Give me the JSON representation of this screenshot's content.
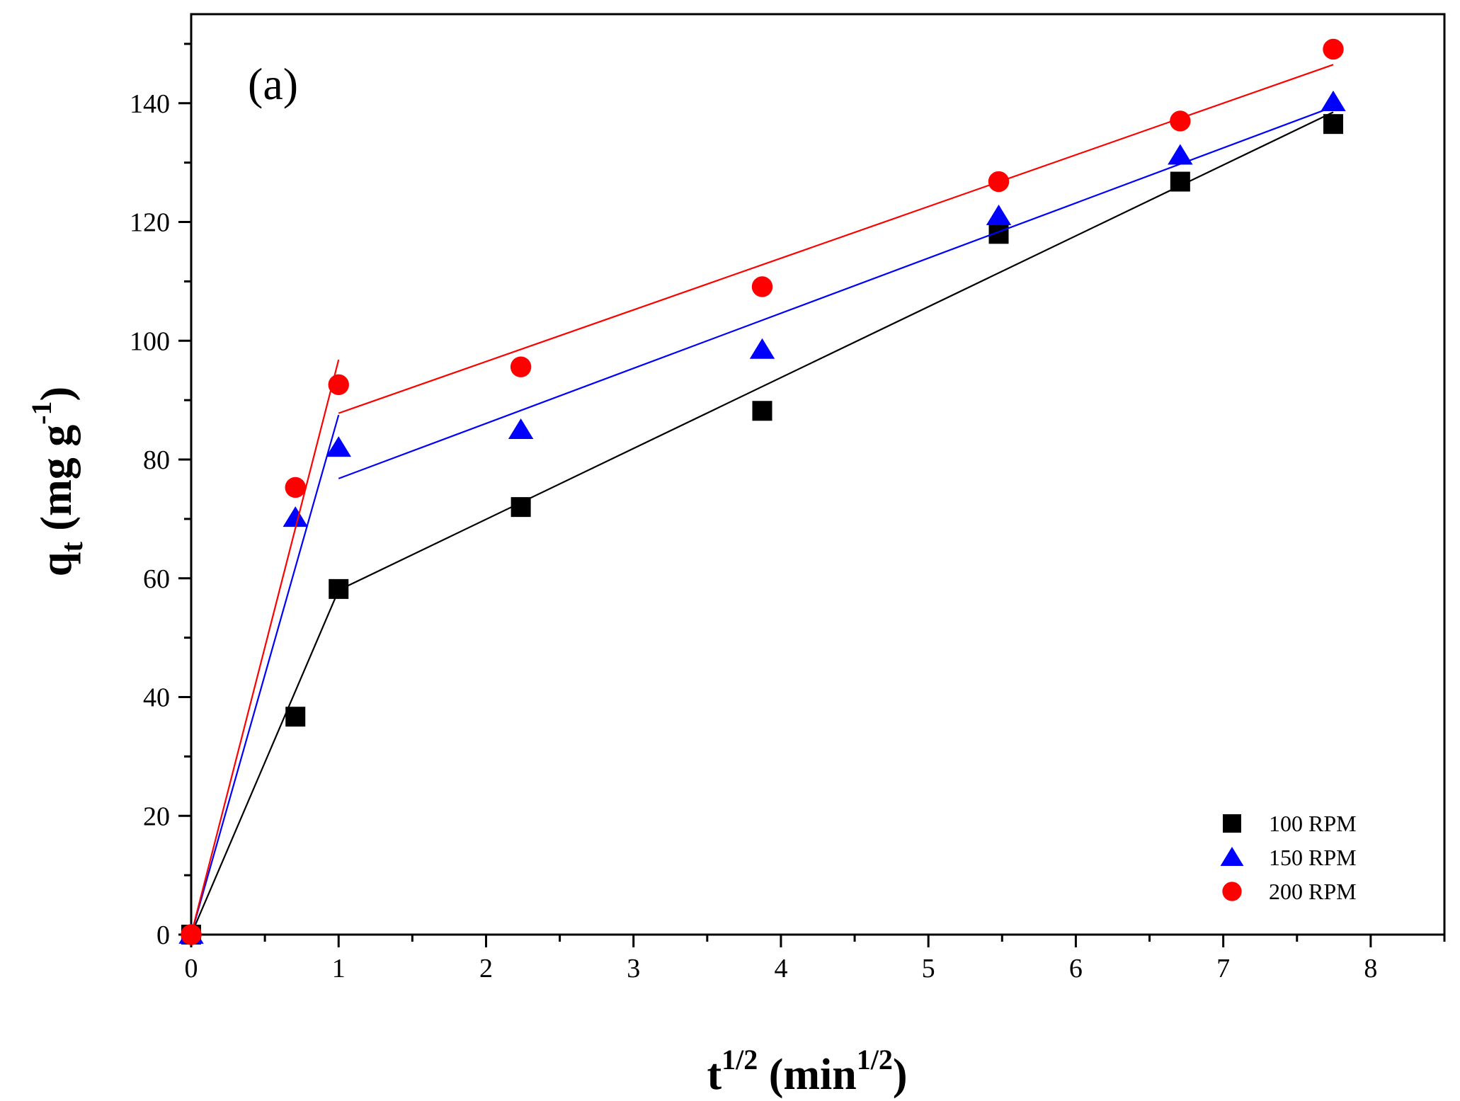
{
  "chart_data": {
    "type": "scatter",
    "panel_label": "(a)",
    "xlabel": {
      "base": "t",
      "sup": "1/2",
      "unit_open": " (min",
      "unit_sup": "1/2",
      "unit_close": ")"
    },
    "ylabel": {
      "base": "q",
      "sub": "t",
      "unit_open": " (mg g",
      "unit_sup": "-1",
      "unit_close": ")"
    },
    "xlim": [
      0,
      8.5
    ],
    "ylim": [
      0,
      155
    ],
    "xticks": [
      0,
      1,
      2,
      3,
      4,
      5,
      6,
      7,
      8
    ],
    "yticks": [
      0,
      20,
      40,
      60,
      80,
      100,
      120,
      140
    ],
    "grid": false,
    "legend_position": "bottom-right",
    "series": [
      {
        "name": "100 RPM",
        "color": "#000000",
        "marker": "square",
        "x": [
          0,
          0.707,
          1.0,
          2.236,
          3.873,
          5.477,
          6.708,
          7.746
        ],
        "y": [
          0,
          36.7,
          58.2,
          72.0,
          88.2,
          118.0,
          126.8,
          136.5
        ],
        "fit_lines": [
          {
            "x": [
              0,
              1.0
            ],
            "y": [
              0,
              58.0
            ]
          },
          {
            "x": [
              1.0,
              7.746
            ],
            "y": [
              58.0,
              138.5
            ]
          }
        ]
      },
      {
        "name": "150 RPM",
        "color": "#0000ff",
        "marker": "triangle",
        "x": [
          0,
          0.707,
          1.0,
          2.236,
          3.873,
          5.477,
          6.708,
          7.746
        ],
        "y": [
          0,
          70.2,
          82.0,
          85.0,
          98.5,
          121.0,
          131.2,
          140.2
        ],
        "fit_lines": [
          {
            "x": [
              0,
              1.0
            ],
            "y": [
              0,
              87.5
            ]
          },
          {
            "x": [
              1.0,
              7.746
            ],
            "y": [
              76.8,
              139.4
            ]
          }
        ]
      },
      {
        "name": "200 RPM",
        "color": "#ff0000",
        "marker": "circle",
        "x": [
          0,
          0.707,
          1.0,
          2.236,
          3.873,
          5.477,
          6.708,
          7.746
        ],
        "y": [
          0,
          75.3,
          92.6,
          95.6,
          109.1,
          126.8,
          137.0,
          149.1
        ],
        "fit_lines": [
          {
            "x": [
              0,
              1.0
            ],
            "y": [
              0,
              96.8
            ]
          },
          {
            "x": [
              1.0,
              7.746
            ],
            "y": [
              87.8,
              146.5
            ]
          }
        ]
      }
    ]
  }
}
